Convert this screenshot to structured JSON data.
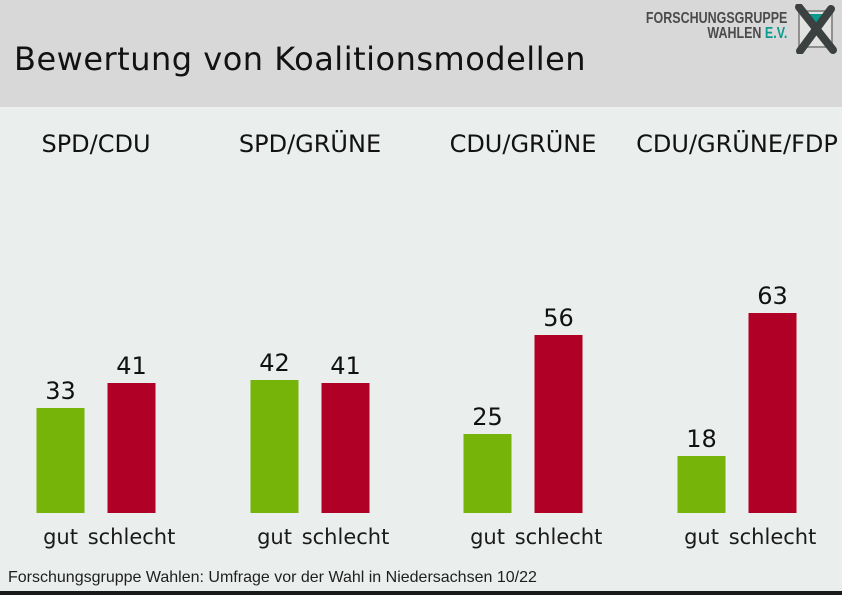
{
  "header": {
    "title": "Bewertung von Koalitionsmodellen"
  },
  "logo": {
    "line1": "FORSCHUNGSGRUPPE",
    "line2_word": "WAHLEN",
    "line2_ev": "E.V."
  },
  "chart_data": {
    "type": "bar",
    "title": "Bewertung von Koalitionsmodellen",
    "categories": [
      "SPD/CDU",
      "SPD/GRÜNE",
      "CDU/GRÜNE",
      "CDU/GRÜNE/FDP"
    ],
    "series": [
      {
        "name": "gut",
        "color": "#76b40a",
        "values": [
          33,
          42,
          25,
          18
        ]
      },
      {
        "name": "schlecht",
        "color": "#b00026",
        "values": [
          41,
          41,
          56,
          63
        ]
      }
    ],
    "value_labels": "above-bars",
    "grid": false,
    "axes": "none",
    "legend": "labels-below-each-bar"
  },
  "footer": {
    "source": "Forschungsgruppe Wahlen: Umfrage vor der Wahl in Niedersachsen 10/22"
  },
  "colors": {
    "header_bg": "#d8d8d8",
    "body_bg": "#eaeeec",
    "bar_gut": "#76b40a",
    "bar_schlecht": "#b00026",
    "logo_teal": "#0b9b8d",
    "logo_gray": "#4b4b4b",
    "bottom_bar": "#1a1a1a"
  }
}
